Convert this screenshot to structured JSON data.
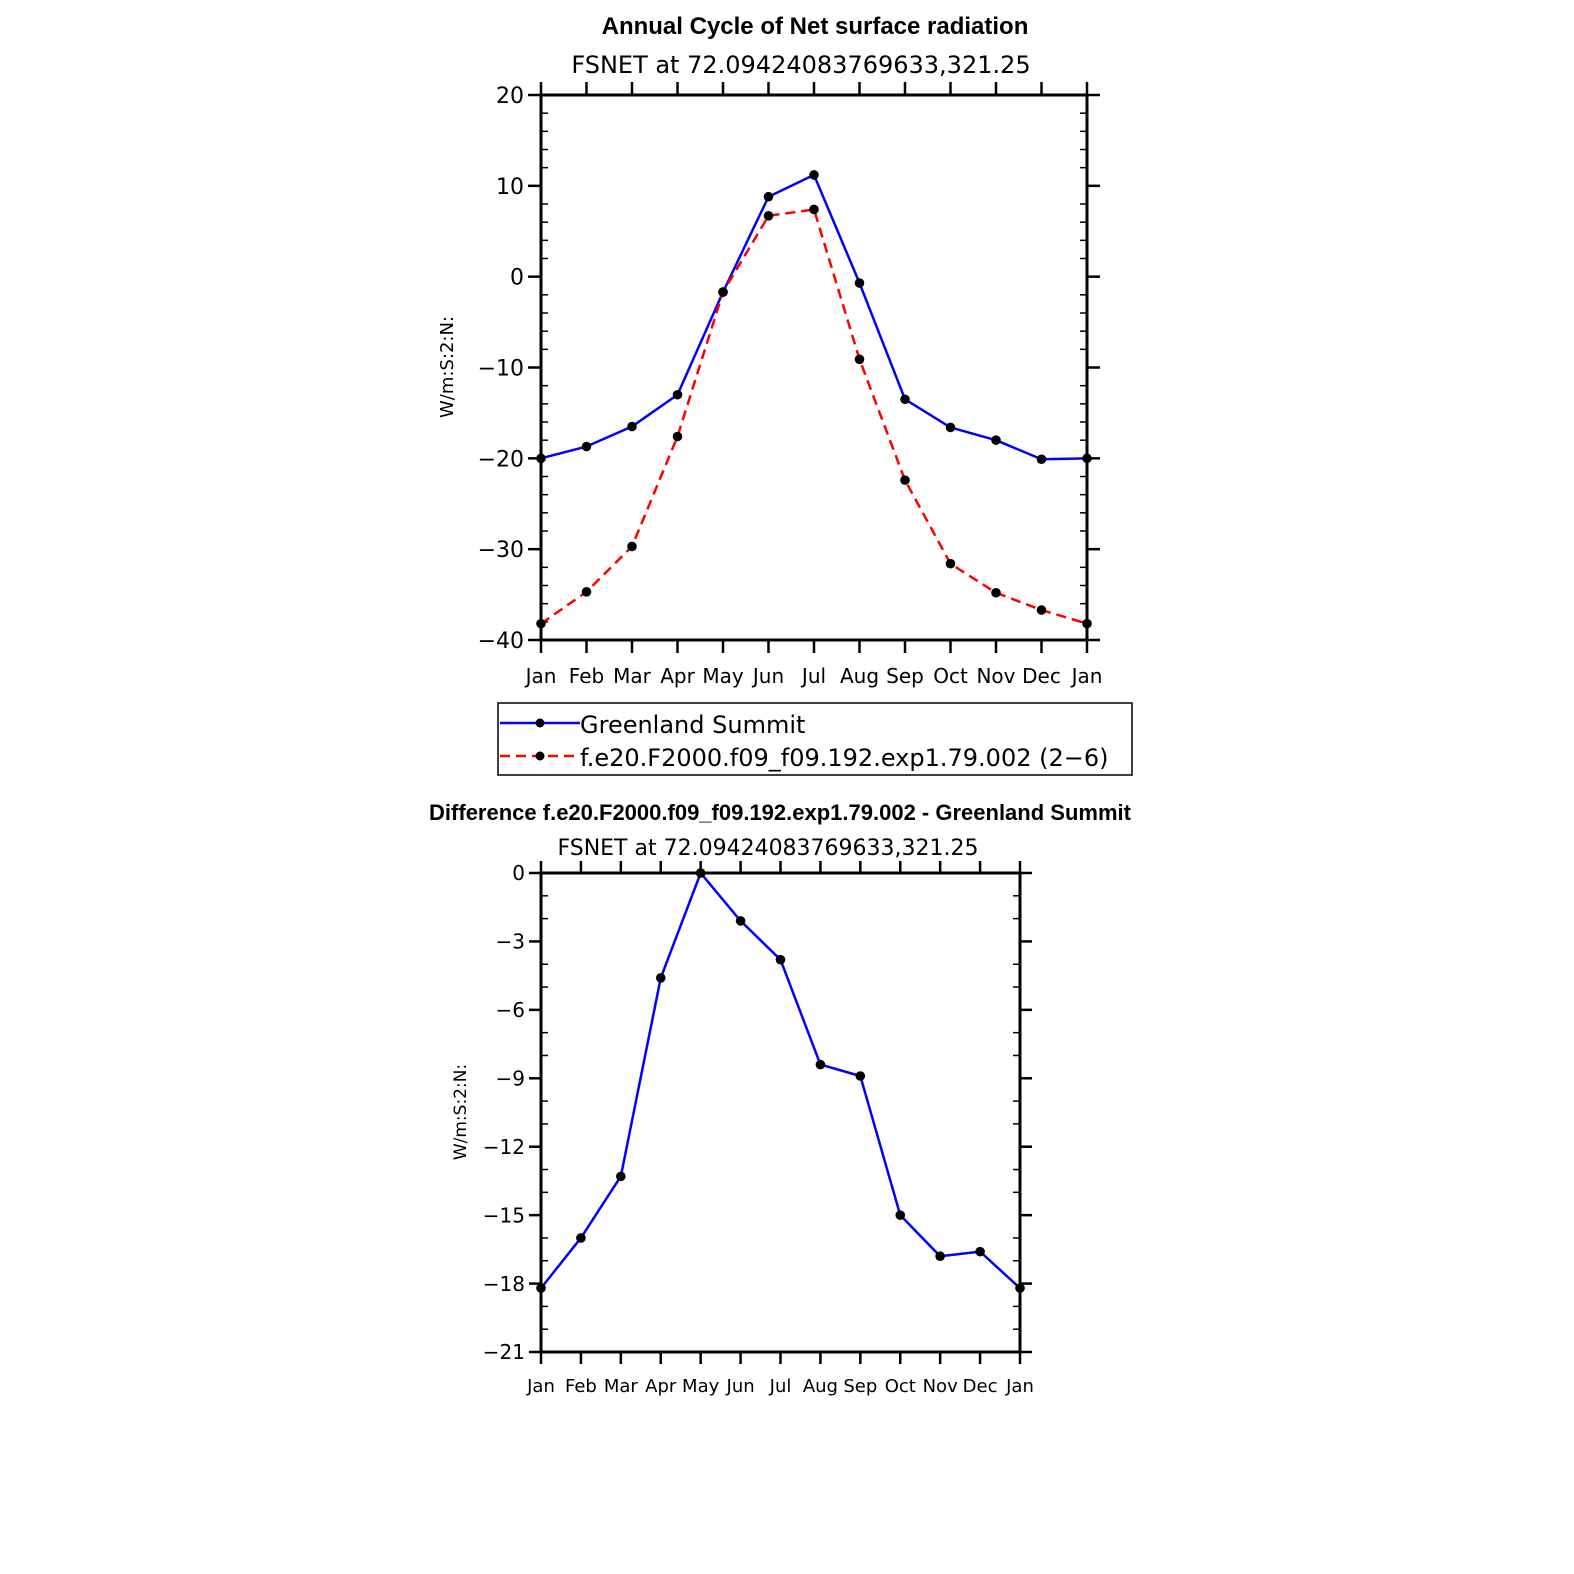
{
  "chart_data": [
    {
      "type": "line",
      "title": "Annual Cycle of Net surface radiation",
      "subtitle": "FSNET at 72.09424083769633,321.25",
      "xlabel": "",
      "ylabel": "W/m:S:2:N:",
      "categories": [
        "Jan",
        "Feb",
        "Mar",
        "Apr",
        "May",
        "Jun",
        "Jul",
        "Aug",
        "Sep",
        "Oct",
        "Nov",
        "Dec",
        "Jan"
      ],
      "ylim": [
        -40,
        20
      ],
      "yticks": [
        20,
        10,
        0,
        -10,
        -20,
        -30,
        -40
      ],
      "ytick_labels": [
        "20",
        "10",
        "0",
        "−10",
        "−20",
        "−30",
        "−40"
      ],
      "series": [
        {
          "name": "Greenland Summit",
          "color": "#0000ff",
          "dash": "solid",
          "values": [
            -20.0,
            -18.7,
            -16.5,
            -13.0,
            -1.7,
            8.8,
            11.2,
            -0.7,
            -13.5,
            -16.6,
            -18.0,
            -20.1,
            -20.0
          ]
        },
        {
          "name": "f.e20.F2000.f09_f09.192.exp1.79.002 (2−6)",
          "color": "#ff0000",
          "dash": "dashed",
          "values": [
            -38.2,
            -34.7,
            -29.7,
            -17.6,
            -1.7,
            6.7,
            7.4,
            -9.1,
            -22.4,
            -31.6,
            -34.8,
            -36.7,
            -38.2
          ]
        }
      ],
      "legend": "below"
    },
    {
      "type": "line",
      "title": "Difference f.e20.F2000.f09_f09.192.exp1.79.002 - Greenland Summit",
      "subtitle": "FSNET at 72.09424083769633,321.25",
      "xlabel": "",
      "ylabel": "W/m:S:2:N:",
      "categories": [
        "Jan",
        "Feb",
        "Mar",
        "Apr",
        "May",
        "Jun",
        "Jul",
        "Aug",
        "Sep",
        "Oct",
        "Nov",
        "Dec",
        "Jan"
      ],
      "ylim": [
        -21,
        0
      ],
      "yticks": [
        0,
        -3,
        -6,
        -9,
        -12,
        -15,
        -18,
        -21
      ],
      "ytick_labels": [
        "0",
        "−3",
        "−6",
        "−9",
        "−12",
        "−15",
        "−18",
        "−21"
      ],
      "series": [
        {
          "color": "#0000ff",
          "dash": "solid",
          "values": [
            -18.2,
            -16.0,
            -13.3,
            -4.6,
            0.0,
            -2.1,
            -3.8,
            -8.4,
            -8.9,
            -15.0,
            -16.8,
            -16.6,
            -18.2
          ]
        }
      ]
    }
  ]
}
